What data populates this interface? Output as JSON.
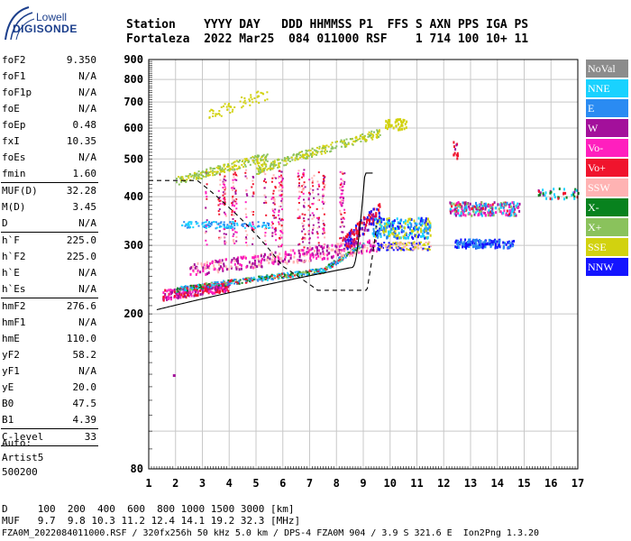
{
  "logo": {
    "line1": "Lowell",
    "line2": "DIGISONDE"
  },
  "header": {
    "row1": "Station    YYYY DAY   DDD HHMMSS P1  FFS S AXN PPS IGA PS",
    "row2": "Fortaleza  2022 Mar25  084 011000 RSF    1 714 100 10+ 11"
  },
  "params": {
    "group1": [
      {
        "k": "foF2",
        "v": "9.350"
      },
      {
        "k": "foF1",
        "v": "N/A"
      },
      {
        "k": "foF1p",
        "v": "N/A"
      },
      {
        "k": "foE",
        "v": "N/A"
      },
      {
        "k": "foEp",
        "v": "0.48"
      },
      {
        "k": "fxI",
        "v": "10.35"
      },
      {
        "k": "foEs",
        "v": "N/A"
      },
      {
        "k": "fmin",
        "v": "1.60"
      }
    ],
    "group2": [
      {
        "k": "MUF(D)",
        "v": "32.28"
      },
      {
        "k": "M(D)",
        "v": "3.45"
      },
      {
        "k": "D",
        "v": "N/A"
      }
    ],
    "group3": [
      {
        "k": "h`F",
        "v": "225.0"
      },
      {
        "k": "h`F2",
        "v": "225.0"
      },
      {
        "k": "h`E",
        "v": "N/A"
      },
      {
        "k": "h`Es",
        "v": "N/A"
      }
    ],
    "group4": [
      {
        "k": "hmF2",
        "v": "276.6"
      },
      {
        "k": "hmF1",
        "v": "N/A"
      },
      {
        "k": "hmE",
        "v": "110.0"
      },
      {
        "k": "yF2",
        "v": "58.2"
      },
      {
        "k": "yF1",
        "v": "N/A"
      },
      {
        "k": "yE",
        "v": "20.0"
      },
      {
        "k": "B0",
        "v": "47.5"
      },
      {
        "k": "B1",
        "v": "4.39"
      }
    ],
    "group5": [
      {
        "k": "C-level",
        "v": "33"
      }
    ]
  },
  "auto": {
    "l1": "Auto:",
    "l2": "Artist5",
    "l3": "500200"
  },
  "legend": [
    {
      "label": "NoVal",
      "color": "#8c8c8c"
    },
    {
      "label": "NNE",
      "color": "#19d2ff"
    },
    {
      "label": "E",
      "color": "#2a8bf2"
    },
    {
      "label": "W",
      "color": "#a3109b"
    },
    {
      "label": "Vo-",
      "color": "#ff1fbe"
    },
    {
      "label": "Vo+",
      "color": "#f0142d"
    },
    {
      "label": "SSW",
      "color": "#ffb3b3"
    },
    {
      "label": "X-",
      "color": "#08821e"
    },
    {
      "label": "X+",
      "color": "#8ac25c"
    },
    {
      "label": "SSE",
      "color": "#d2d20f"
    },
    {
      "label": "NNW",
      "color": "#1414ff"
    }
  ],
  "chart_data": {
    "type": "scatter",
    "x_ticks": [
      "1",
      "2",
      "3",
      "4",
      "5",
      "6",
      "7",
      "8",
      "9",
      "10",
      "11",
      "12",
      "13",
      "14",
      "15",
      "16",
      "17"
    ],
    "y_ticks": [
      "80",
      "200",
      "300",
      "400",
      "500",
      "600",
      "700",
      "800",
      "900"
    ],
    "xlim": [
      1,
      17
    ],
    "ylim": [
      80,
      900
    ],
    "y_scale": "log",
    "grid": true
  },
  "footer": {
    "row1": "D     100  200  400  600  800 1000 1500 3000 [km]",
    "row2": "MUF   9.7  9.8 10.3 11.2 12.4 14.1 19.2 32.3 [MHz]",
    "src": "FZA0M_2022084011000.RSF / 320fx256h 50 kHz 5.0 km / DPS-4 FZA0M 904 / 3.9 S 321.6 E  Ion2Png 1.3.20"
  }
}
